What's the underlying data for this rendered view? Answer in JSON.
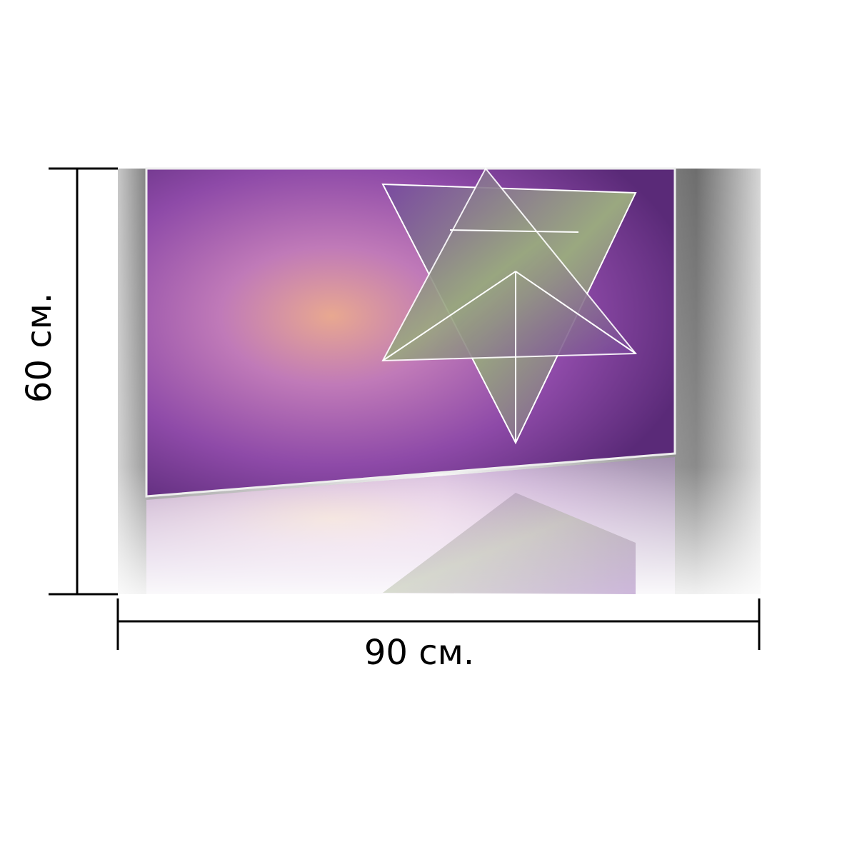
{
  "height_label": "60 см.",
  "width_label": "90 см."
}
